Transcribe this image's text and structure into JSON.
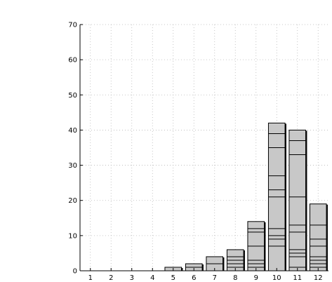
{
  "chart_data": {
    "type": "bar",
    "categories": [
      "1",
      "2",
      "3",
      "4",
      "5",
      "6",
      "7",
      "8",
      "9",
      "10",
      "11",
      "12"
    ],
    "values": [
      0,
      0,
      0,
      0,
      1,
      2,
      4,
      6,
      14,
      42,
      40,
      19
    ],
    "segment_boundaries": [
      [],
      [],
      [],
      [],
      [],
      [
        1
      ],
      [
        2
      ],
      [
        1,
        2,
        3,
        4
      ],
      [
        1,
        2,
        3,
        7,
        11,
        12
      ],
      [
        7,
        9,
        10,
        12,
        21,
        23,
        27,
        35,
        39
      ],
      [
        1,
        4,
        5,
        6,
        11,
        13,
        21,
        33,
        37
      ],
      [
        1,
        2,
        3,
        4,
        7,
        9,
        13
      ]
    ],
    "title": "",
    "xlabel": "",
    "ylabel": "",
    "ylim": [
      0,
      70
    ],
    "yticks": [
      0,
      10,
      20,
      30,
      40,
      50,
      60,
      70
    ],
    "grid": true,
    "bar_color": "#c8c8c8",
    "edge_color": "#000000"
  }
}
